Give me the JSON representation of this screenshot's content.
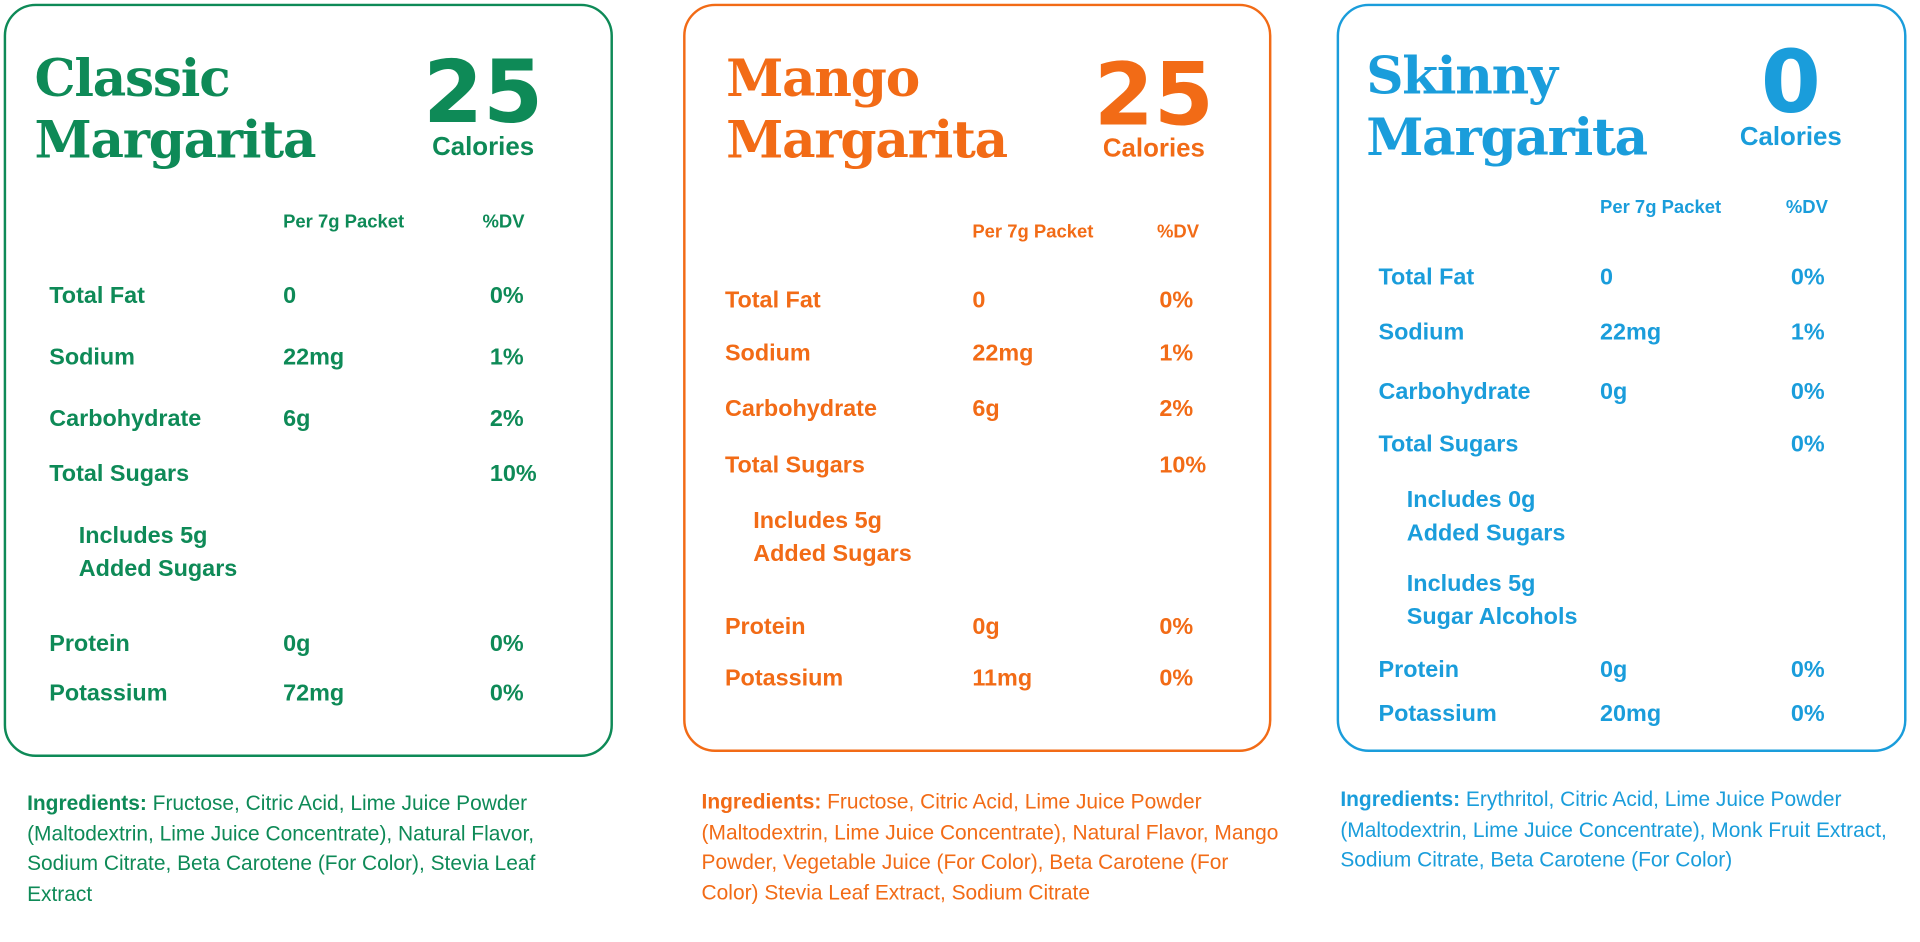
{
  "cards": [
    {
      "color": "#0e8a57",
      "title_line1": "Classic",
      "title_line2": "Margarita",
      "calories": "25",
      "calories_label": "Calories",
      "col_amount": "Per 7g Packet",
      "col_dv": "%DV",
      "rows": [
        {
          "label": "Total Fat",
          "amount": "0",
          "dv": "0%"
        },
        {
          "label": "Sodium",
          "amount": "22mg",
          "dv": "1%"
        },
        {
          "label": "Carbohydrate",
          "amount": "6g",
          "dv": "2%"
        },
        {
          "label": "Total Sugars",
          "amount": "",
          "dv": "10%"
        },
        {
          "label": "Includes 5g\nAdded Sugars",
          "amount": "",
          "dv": "",
          "sub": true
        },
        {
          "label": "Protein",
          "amount": "0g",
          "dv": "0%"
        },
        {
          "label": "Potassium",
          "amount": "72mg",
          "dv": "0%"
        }
      ],
      "ingredients_label": "Ingredients:",
      "ingredients": "Fructose, Citric Acid, Lime Juice Powder (Maltodextrin, Lime Juice Concentrate), Natural Flavor, Sodium Citrate, Beta Carotene (For Color), Stevia Leaf Extract"
    },
    {
      "color": "#f26b16",
      "title_line1": "Mango",
      "title_line2": "Margarita",
      "calories": "25",
      "calories_label": "Calories",
      "col_amount": "Per 7g Packet",
      "col_dv": "%DV",
      "rows": [
        {
          "label": "Total Fat",
          "amount": "0",
          "dv": "0%"
        },
        {
          "label": "Sodium",
          "amount": "22mg",
          "dv": "1%"
        },
        {
          "label": "Carbohydrate",
          "amount": "6g",
          "dv": "2%"
        },
        {
          "label": "Total Sugars",
          "amount": "",
          "dv": "10%"
        },
        {
          "label": "Includes 5g\nAdded Sugars",
          "amount": "",
          "dv": "",
          "sub": true
        },
        {
          "label": "Protein",
          "amount": "0g",
          "dv": "0%"
        },
        {
          "label": "Potassium",
          "amount": "11mg",
          "dv": "0%"
        }
      ],
      "ingredients_label": "Ingredients:",
      "ingredients": "Fructose, Citric Acid, Lime Juice Powder (Maltodextrin, Lime Juice Concentrate), Natural Flavor, Mango Powder, Vegetable Juice (For Color), Beta Carotene (For Color) Stevia Leaf Extract, Sodium Citrate"
    },
    {
      "color": "#1a9ddb",
      "title_line1": "Skinny",
      "title_line2": "Margarita",
      "calories": "0",
      "calories_label": "Calories",
      "col_amount": "Per 7g Packet",
      "col_dv": "%DV",
      "rows": [
        {
          "label": "Total Fat",
          "amount": "0",
          "dv": "0%"
        },
        {
          "label": "Sodium",
          "amount": "22mg",
          "dv": "1%"
        },
        {
          "label": "Carbohydrate",
          "amount": "0g",
          "dv": "0%"
        },
        {
          "label": "Total Sugars",
          "amount": "",
          "dv": "0%"
        },
        {
          "label": "Includes 0g\nAdded Sugars",
          "amount": "",
          "dv": "",
          "sub": true
        },
        {
          "label": "Includes 5g\nSugar Alcohols",
          "amount": "",
          "dv": "",
          "sub": true
        },
        {
          "label": "Protein",
          "amount": "0g",
          "dv": "0%"
        },
        {
          "label": "Potassium",
          "amount": "20mg",
          "dv": "0%"
        }
      ],
      "ingredients_label": "Ingredients:",
      "ingredients": "Erythritol, Citric Acid, Lime Juice Powder (Maltodextrin, Lime Juice Concentrate), Monk Fruit Extract, Sodium Citrate, Beta Carotene (For Color)"
    }
  ]
}
